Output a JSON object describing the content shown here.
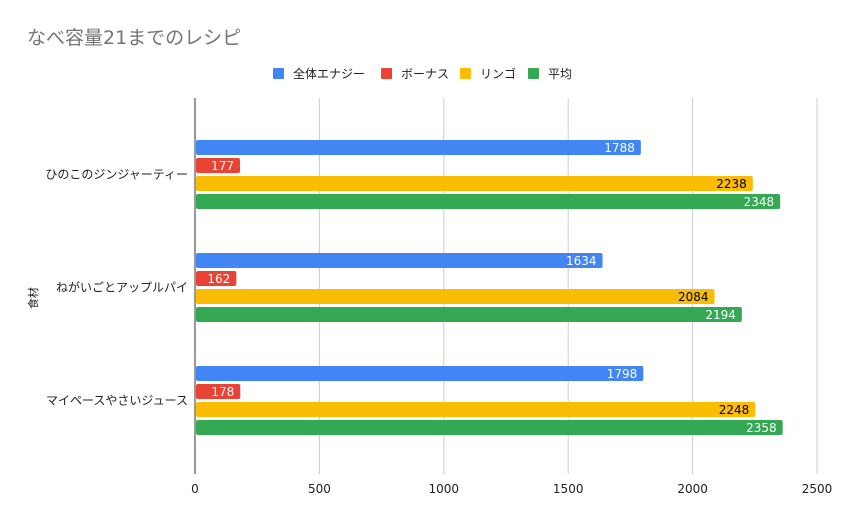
{
  "chart_data": {
    "type": "bar",
    "orientation": "horizontal",
    "title": "なべ容量21までのレシピ",
    "ylabel": "食材",
    "xlabel": "",
    "categories": [
      "ひのこのジンジャーティー",
      "ねがいごとアップルパイ",
      "マイペースやさいジュース"
    ],
    "series": [
      {
        "name": "全体エナジー",
        "color": "#4285f4",
        "label_color": "#ffffff",
        "values": [
          1788,
          1634,
          1798
        ]
      },
      {
        "name": "ボーナス",
        "color": "#ea4335",
        "label_color": "#ffffff",
        "values": [
          177,
          162,
          178
        ]
      },
      {
        "name": "リンゴ",
        "color": "#fbbc04",
        "label_color": "#000000",
        "values": [
          2238,
          2084,
          2248
        ]
      },
      {
        "name": "平均",
        "color": "#34a853",
        "label_color": "#ffffff",
        "values": [
          2348,
          2194,
          2358
        ]
      }
    ],
    "xlim": [
      0,
      2500
    ],
    "xticks": [
      0,
      500,
      1000,
      1500,
      2000,
      2500
    ],
    "grid": true,
    "legend_position": "top"
  }
}
